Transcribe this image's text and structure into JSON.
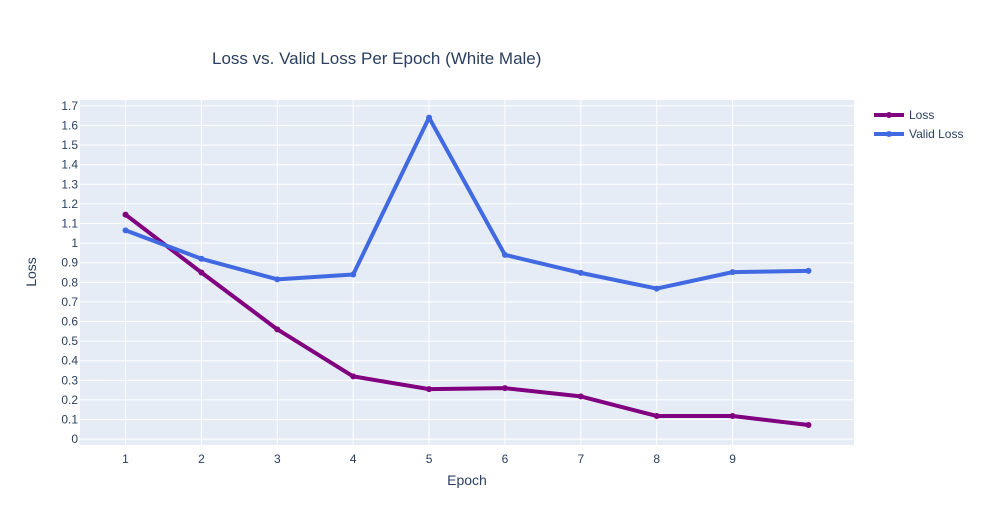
{
  "chart_data": {
    "type": "line",
    "title": "Loss vs. Valid Loss Per Epoch (White Male)",
    "xlabel": "Epoch",
    "ylabel": "Loss",
    "xlim": [
      0.4,
      10.6
    ],
    "ylim": [
      -0.03,
      1.73
    ],
    "x_ticks": [
      "1",
      "2",
      "3",
      "4",
      "5",
      "6",
      "7",
      "8",
      "9"
    ],
    "y_ticks": [
      "0",
      "0.1",
      "0.2",
      "0.3",
      "0.4",
      "0.5",
      "0.6",
      "0.7",
      "0.8",
      "0.9",
      "1",
      "1.1",
      "1.2",
      "1.3",
      "1.4",
      "1.5",
      "1.6",
      "1.7"
    ],
    "x": [
      1,
      2,
      3,
      4,
      5,
      6,
      7,
      8,
      9,
      10
    ],
    "grid": true,
    "legend_position": "top-right",
    "plot_background": "#E5ECF6",
    "series": [
      {
        "name": "Loss",
        "color": "#800080",
        "values": [
          1.145,
          0.85,
          0.56,
          0.32,
          0.255,
          0.26,
          0.218,
          0.118,
          0.118,
          0.072
        ]
      },
      {
        "name": "Valid Loss",
        "color": "#4169E1",
        "values": [
          1.065,
          0.92,
          0.815,
          0.84,
          1.64,
          0.94,
          0.848,
          0.768,
          0.852,
          0.858
        ]
      }
    ]
  }
}
